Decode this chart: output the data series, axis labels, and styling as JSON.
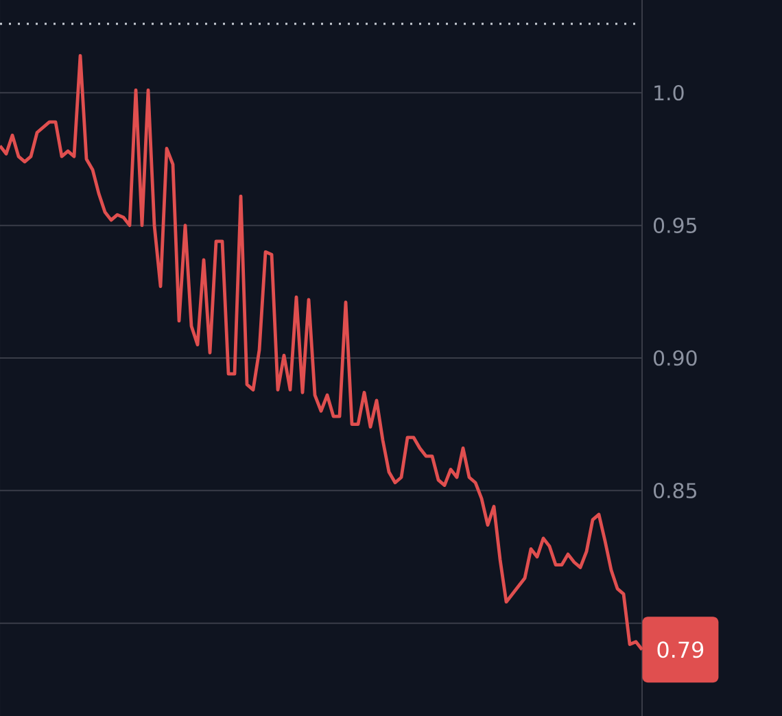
{
  "chart_data": {
    "type": "line",
    "categories": [
      null,
      null,
      null,
      null,
      null,
      null,
      null,
      null,
      null,
      null,
      null,
      null,
      null,
      null,
      null,
      null,
      null,
      null,
      null,
      null,
      null,
      null,
      null,
      null,
      null,
      null,
      null,
      null,
      null,
      null,
      null,
      null,
      null,
      null,
      null,
      null,
      null,
      null,
      null,
      null,
      null,
      null,
      null,
      null,
      null,
      null,
      null,
      null,
      null,
      null,
      null,
      null,
      null,
      null,
      null,
      null,
      null,
      null,
      null,
      null,
      null,
      null,
      null,
      null,
      null,
      null,
      null,
      null,
      null,
      null,
      null,
      null,
      null,
      null,
      null,
      null,
      null,
      null,
      null,
      null,
      null,
      null,
      null,
      null,
      null,
      null,
      null,
      null,
      null,
      null,
      null,
      null,
      null,
      null,
      null,
      null,
      null,
      null,
      null,
      null,
      null,
      null,
      null,
      null,
      null
    ],
    "series": [
      {
        "color": "#e04f4f",
        "values": [
          0.98,
          0.977,
          0.984,
          0.976,
          0.974,
          0.976,
          0.985,
          0.987,
          0.989,
          0.989,
          0.976,
          0.978,
          0.976,
          1.014,
          0.975,
          0.971,
          0.962,
          0.955,
          0.952,
          0.954,
          0.953,
          0.95,
          1.001,
          0.95,
          1.001,
          0.95,
          0.927,
          0.979,
          0.973,
          0.914,
          0.95,
          0.912,
          0.905,
          0.937,
          0.902,
          0.944,
          0.944,
          0.894,
          0.894,
          0.961,
          0.89,
          0.888,
          0.903,
          0.94,
          0.939,
          0.888,
          0.901,
          0.888,
          0.923,
          0.887,
          0.922,
          0.886,
          0.88,
          0.886,
          0.878,
          0.878,
          0.921,
          0.875,
          0.875,
          0.887,
          0.874,
          0.884,
          0.869,
          0.857,
          0.853,
          0.855,
          0.87,
          0.87,
          0.866,
          0.863,
          0.863,
          0.854,
          0.852,
          0.858,
          0.855,
          0.866,
          0.855,
          0.853,
          0.847,
          0.837,
          0.844,
          0.824,
          0.808,
          0.811,
          0.814,
          0.817,
          0.828,
          0.825,
          0.832,
          0.829,
          0.822,
          0.822,
          0.826,
          0.823,
          0.821,
          0.827,
          0.839,
          0.841,
          0.831,
          0.82,
          0.813,
          0.811,
          0.792,
          0.793,
          0.79
        ]
      }
    ],
    "ylim": [
      0.765,
      1.035
    ],
    "yticks": [
      {
        "value": 0.8,
        "label": null
      },
      0.85,
      {
        "value": 0.9,
        "label": "0.90"
      },
      0.95,
      {
        "value": 1.0,
        "label": "1.0"
      }
    ],
    "grid": "y",
    "marker": "none",
    "line_style": "solid",
    "ref_lines": [
      {
        "axis": "y",
        "value": 1.026,
        "color": "#c8ccd4",
        "line_style": "dotted"
      }
    ],
    "annotations": [
      "0.79"
    ]
  }
}
